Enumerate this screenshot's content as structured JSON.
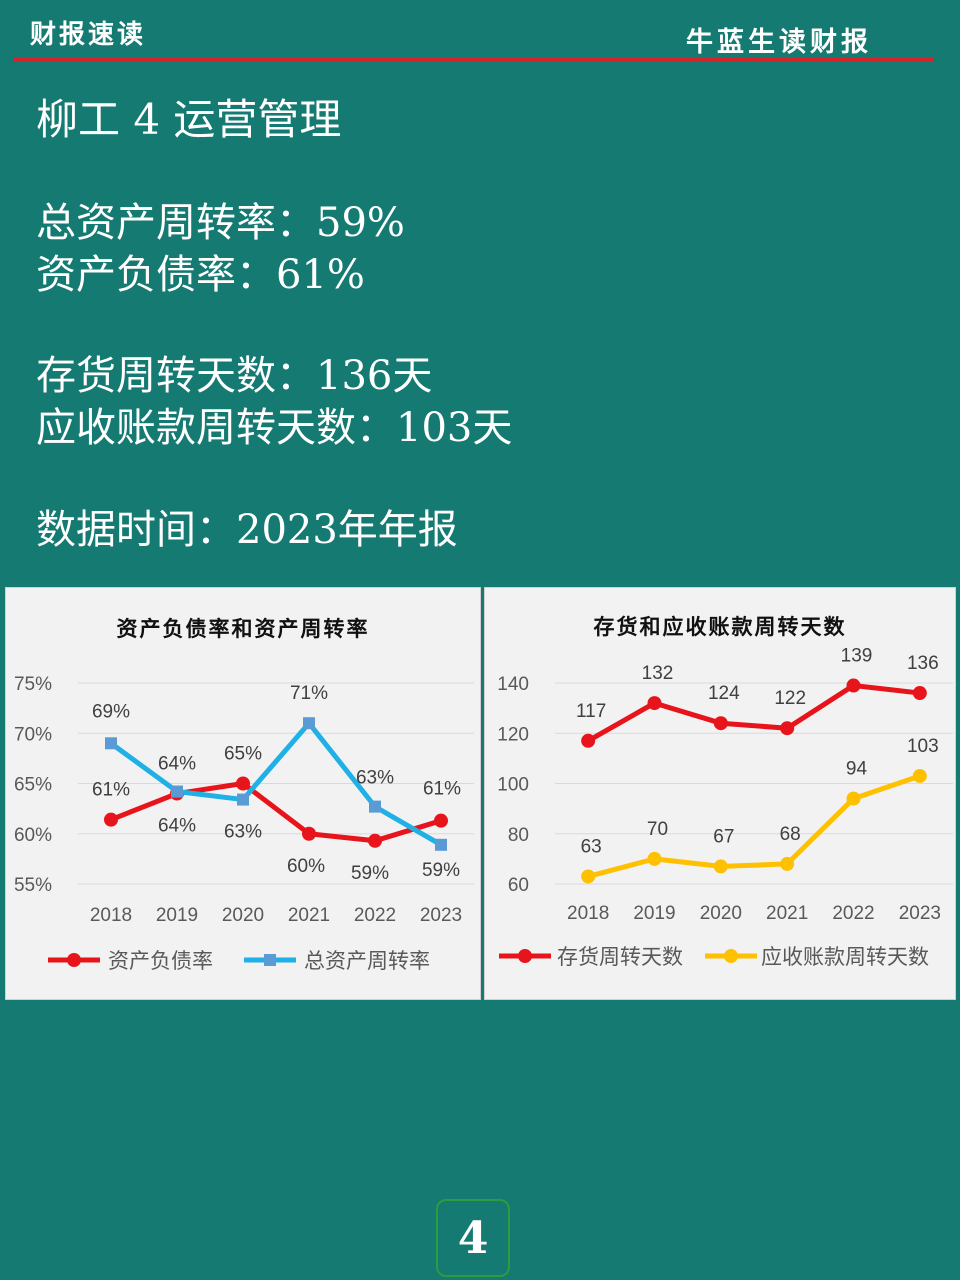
{
  "header": {
    "left": "财报速读",
    "right": "牛蓝生读财报"
  },
  "title": "柳工 4 运营管理",
  "stats": [
    "总资产周转率：59%",
    "资产负债率：61%",
    "存货周转天数：136天",
    "应收账款周转天数：103天",
    "数据时间：2023年年报"
  ],
  "colors": {
    "background": "#147a72",
    "accent": "#d8222a",
    "red": "#e8141b",
    "blue": "#1fb0e6",
    "blue_marker": "#5b9bd5",
    "yellow": "#ffc000"
  },
  "chart_data": [
    {
      "type": "line",
      "title": "资产负债率和资产周转率",
      "categories": [
        "2018",
        "2019",
        "2020",
        "2021",
        "2022",
        "2023"
      ],
      "ylim": [
        55,
        75
      ],
      "yticks": [
        "75%",
        "70%",
        "65%",
        "60%",
        "55%"
      ],
      "grid": true,
      "legend": "bottom",
      "series": [
        {
          "name": "资产负债率",
          "values": [
            61.4,
            64.0,
            65.0,
            60.0,
            59.3,
            61.3
          ],
          "labels": [
            "61%",
            "64%",
            "65%",
            "60%",
            "59%",
            "61%"
          ],
          "color": "#e8141b"
        },
        {
          "name": "总资产周转率",
          "values": [
            69.0,
            64.2,
            63.4,
            71.0,
            62.7,
            58.9
          ],
          "labels": [
            "69%",
            "64%",
            "63%",
            "71%",
            "63%",
            "59%"
          ],
          "color": "#1fb0e6"
        }
      ]
    },
    {
      "type": "line",
      "title": "存货和应收账款周转天数",
      "categories": [
        "2018",
        "2019",
        "2020",
        "2021",
        "2022",
        "2023"
      ],
      "ylim": [
        60,
        140
      ],
      "yticks": [
        "140",
        "120",
        "100",
        "80",
        "60"
      ],
      "grid": true,
      "legend": "bottom",
      "series": [
        {
          "name": "存货周转天数",
          "values": [
            117,
            132,
            124,
            122,
            139,
            136
          ],
          "labels": [
            "117",
            "132",
            "124",
            "122",
            "139",
            "136"
          ],
          "color": "#e8141b"
        },
        {
          "name": "应收账款周转天数",
          "values": [
            63,
            70,
            67,
            68,
            94,
            103
          ],
          "labels": [
            "63",
            "70",
            "67",
            "68",
            "94",
            "103"
          ],
          "color": "#ffc000"
        }
      ]
    }
  ],
  "page_number": "4"
}
